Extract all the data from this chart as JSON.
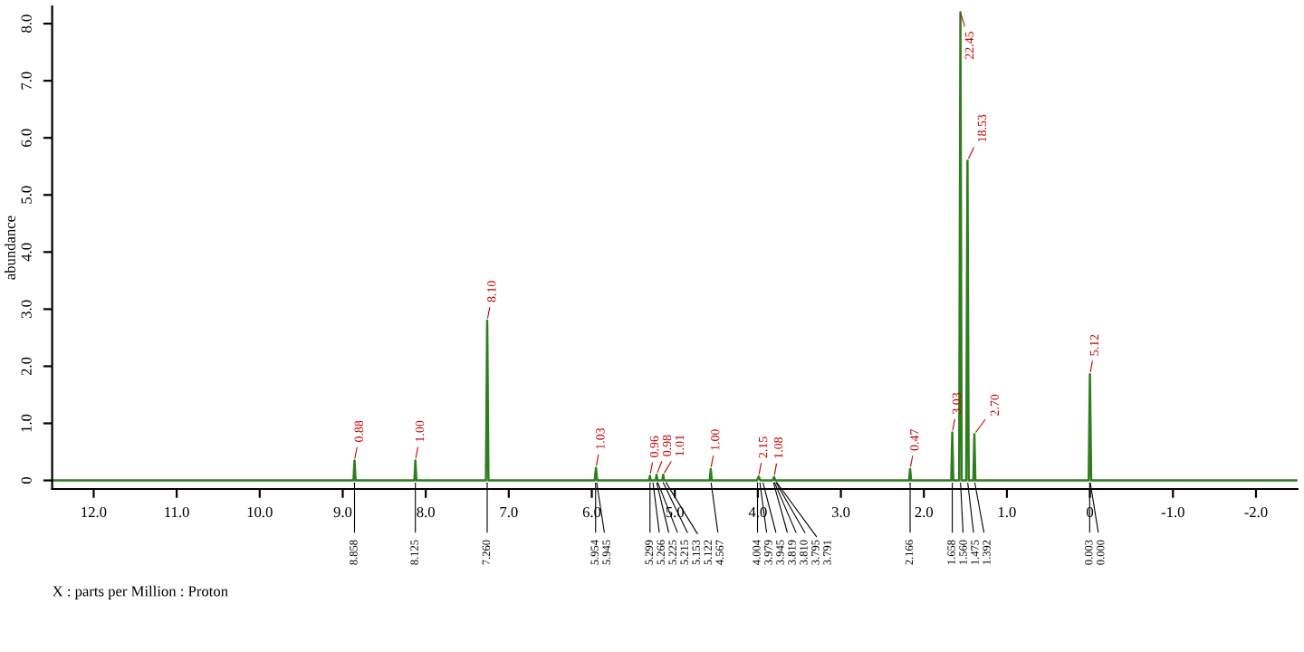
{
  "chart_data": {
    "type": "line",
    "xlabel": "X : parts per Million : Proton",
    "ylabel": "abundance",
    "series": [
      {
        "color": "#2e7d1e",
        "x": [
          12.5,
          8.87,
          8.858,
          8.846,
          8.137,
          8.125,
          8.113,
          7.275,
          7.26,
          7.245,
          5.965,
          5.95,
          5.935,
          5.31,
          5.3,
          5.29,
          5.23,
          5.22,
          5.21,
          5.15,
          5.14,
          5.13,
          4.579,
          4.567,
          4.555,
          4.01,
          3.99,
          3.97,
          3.82,
          3.805,
          3.79,
          2.178,
          2.166,
          2.154,
          1.67,
          1.658,
          1.646,
          1.575,
          1.56,
          1.545,
          1.49,
          1.475,
          1.46,
          1.404,
          1.392,
          1.38,
          0.015,
          0.0,
          -0.015,
          -2.5
        ],
        "values": [
          0,
          0,
          0.35,
          0,
          0,
          0.35,
          0,
          0,
          2.8,
          0,
          0,
          0.22,
          0,
          0,
          0.08,
          0,
          0,
          0.1,
          0,
          0,
          0.1,
          0,
          0,
          0.2,
          0,
          0,
          0.07,
          0,
          0,
          0.06,
          0,
          0,
          0.2,
          0,
          0,
          0.84,
          0,
          0,
          8.2,
          0,
          0,
          5.6,
          0,
          0,
          0.81,
          0,
          0,
          1.86,
          0,
          0
        ]
      }
    ],
    "xlim": [
      12.5,
      -2.5
    ],
    "xticks": [
      {
        "value": 12,
        "label": "12.0"
      },
      {
        "value": 11,
        "label": "11.0"
      },
      {
        "value": 10,
        "label": "10.0"
      },
      {
        "value": 9,
        "label": "9.0"
      },
      {
        "value": 8,
        "label": "8.0"
      },
      {
        "value": 7,
        "label": "7.0"
      },
      {
        "value": 6,
        "label": "6.0"
      },
      {
        "value": 5,
        "label": "5.0"
      },
      {
        "value": 4,
        "label": "4.0"
      },
      {
        "value": 3,
        "label": "3.0"
      },
      {
        "value": 2,
        "label": "2.0"
      },
      {
        "value": 1,
        "label": "1.0"
      },
      0,
      {
        "value": -1,
        "label": "-1.0"
      },
      {
        "value": -2,
        "label": "-2.0"
      }
    ],
    "ylim": [
      -0.15,
      8.3
    ],
    "yticks": [
      0,
      {
        "value": 1,
        "label": "1.0"
      },
      {
        "value": 2,
        "label": "2.0"
      },
      {
        "value": 3,
        "label": "3.0"
      },
      {
        "value": 4,
        "label": "4.0"
      },
      {
        "value": 5,
        "label": "5.0"
      },
      {
        "value": 6,
        "label": "6.0"
      },
      {
        "value": 7,
        "label": "7.0"
      },
      {
        "value": 8,
        "label": "8.0"
      }
    ],
    "annotations": [
      {
        "text": "0.88",
        "x": 8.858,
        "y": 0.35
      },
      {
        "text": "1.00",
        "x": 8.125,
        "y": 0.35
      },
      {
        "text": "8.10",
        "x": 7.26,
        "y": 2.8
      },
      {
        "text": "1.03",
        "x": 5.95,
        "y": 0.22
      },
      {
        "text": "0.96",
        "x": 5.3,
        "y": 0.08
      },
      {
        "text": "0.98",
        "x": 5.22,
        "y": 0.1
      },
      {
        "text": "1.01",
        "x": 5.14,
        "y": 0.1
      },
      {
        "text": "1.00",
        "x": 4.567,
        "y": 0.2
      },
      {
        "text": "2.15",
        "x": 3.99,
        "y": 0.07
      },
      {
        "text": "1.08",
        "x": 3.805,
        "y": 0.06
      },
      {
        "text": "0.47",
        "x": 2.166,
        "y": 0.2
      },
      {
        "text": "3.03",
        "x": 1.658,
        "y": 0.84
      },
      {
        "text": "22.45",
        "x": 1.56,
        "y": 8.2
      },
      {
        "text": "18.53",
        "x": 1.475,
        "y": 5.6
      },
      {
        "text": "2.70",
        "x": 1.392,
        "y": 0.81
      },
      {
        "text": "5.12",
        "x": 0.0,
        "y": 1.86
      },
      {
        "text": "8.858",
        "x": 8.858,
        "y": 0
      },
      {
        "text": "8.125",
        "x": 8.125,
        "y": 0
      },
      {
        "text": "7.260",
        "x": 7.26,
        "y": 0
      },
      {
        "text": "5.954",
        "x": 5.954,
        "y": 0
      },
      {
        "text": "5.945",
        "x": 5.945,
        "y": 0
      },
      {
        "text": "5.299",
        "x": 5.299,
        "y": 0
      },
      {
        "text": "5.266",
        "x": 5.266,
        "y": 0
      },
      {
        "text": "5.225",
        "x": 5.225,
        "y": 0
      },
      {
        "text": "5.215",
        "x": 5.215,
        "y": 0
      },
      {
        "text": "5.153",
        "x": 5.153,
        "y": 0
      },
      {
        "text": "5.122",
        "x": 5.122,
        "y": 0
      },
      {
        "text": "4.567",
        "x": 4.567,
        "y": 0
      },
      {
        "text": "4.004",
        "x": 4.004,
        "y": 0
      },
      {
        "text": "3.979",
        "x": 3.979,
        "y": 0
      },
      {
        "text": "3.945",
        "x": 3.945,
        "y": 0
      },
      {
        "text": "3.819",
        "x": 3.819,
        "y": 0
      },
      {
        "text": "3.810",
        "x": 3.81,
        "y": 0
      },
      {
        "text": "3.795",
        "x": 3.795,
        "y": 0
      },
      {
        "text": "3.791",
        "x": 3.791,
        "y": 0
      },
      {
        "text": "2.166",
        "x": 2.166,
        "y": 0
      },
      {
        "text": "1.658",
        "x": 1.658,
        "y": 0
      },
      {
        "text": "1.560",
        "x": 1.56,
        "y": 0
      },
      {
        "text": "1.475",
        "x": 1.475,
        "y": 0
      },
      {
        "text": "1.392",
        "x": 1.392,
        "y": 0
      },
      {
        "text": "0.003",
        "x": 0.003,
        "y": 0
      },
      {
        "text": "0.000",
        "x": 0.0,
        "y": 0
      }
    ]
  }
}
